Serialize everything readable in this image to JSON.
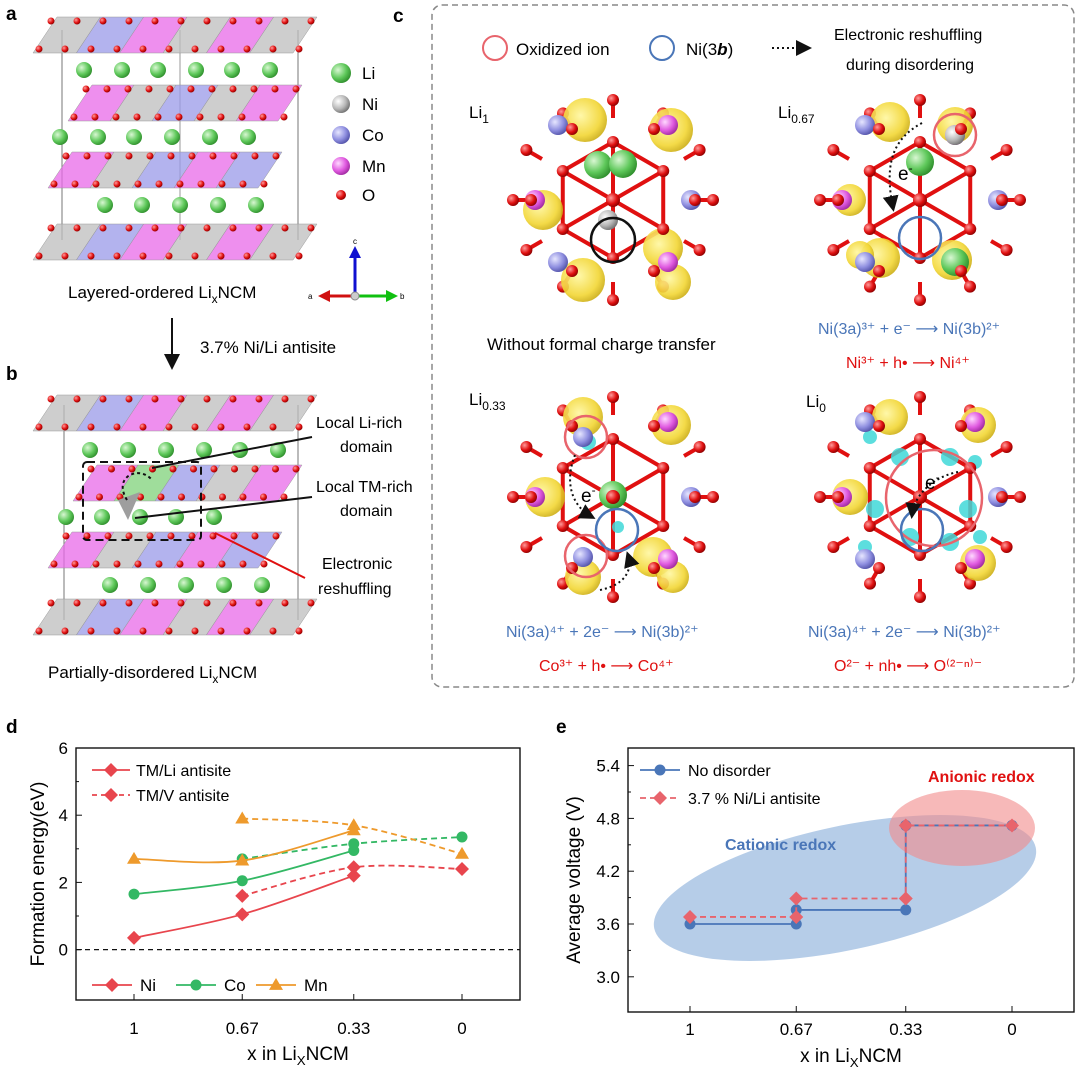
{
  "panels": {
    "a": {
      "letter": "a",
      "legend": [
        {
          "label": "Li",
          "color": "#5ec85a"
        },
        {
          "label": "Ni",
          "color": "#b8b8b8"
        },
        {
          "label": "Co",
          "color": "#8f8fe0"
        },
        {
          "label": "Mn",
          "color": "#e05ae0"
        },
        {
          "label": "O",
          "color": "#e01010"
        }
      ],
      "axes": {
        "c": "c",
        "a": "a",
        "b": "b"
      },
      "caption_prefix": "Layered-ordered Li",
      "caption_sub": "x",
      "caption_suffix": "NCM"
    },
    "arrow_label": "3.7% Ni/Li antisite",
    "b": {
      "letter": "b",
      "callout_li_1": "Local Li-rich",
      "callout_li_2": "domain",
      "callout_tm_1": "Local TM-rich",
      "callout_tm_2": "domain",
      "callout_e_1": "Electronic",
      "callout_e_2": "reshuffling",
      "caption_prefix": "Partially-disordered Li",
      "caption_sub": "x",
      "caption_suffix": "NCM"
    },
    "c": {
      "letter": "c",
      "legend_oxidized": "Oxidized ion",
      "legend_ni_prefix": "Ni(3",
      "legend_ni_bold": "b",
      "legend_ni_suffix": ")",
      "legend_reshuffle_1": "Electronic reshuffling",
      "legend_reshuffle_2": "during disordering",
      "electron": "e",
      "electron_sup": "-",
      "sub1": {
        "label": "Li",
        "sub": "1",
        "caption": "Without formal charge transfer"
      },
      "sub2": {
        "label": "Li",
        "sub": "0.67",
        "eq1": "Ni(3a)³⁺ + e⁻ ⟶ Ni(3b)²⁺",
        "eq2": "Ni³⁺ + h• ⟶ Ni⁴⁺"
      },
      "sub3": {
        "label": "Li",
        "sub": "0.33",
        "eq1": "Ni(3a)⁴⁺ + 2e⁻ ⟶ Ni(3b)²⁺",
        "eq2": "Co³⁺ + h• ⟶ Co⁴⁺"
      },
      "sub4": {
        "label": "Li",
        "sub": "0",
        "eq1": "Ni(3a)⁴⁺ + 2e⁻ ⟶ Ni(3b)²⁺",
        "eq2": "O²⁻ + nh• ⟶ O⁽²⁻ⁿ⁾⁻"
      }
    },
    "d": {
      "letter": "d"
    },
    "e": {
      "letter": "e"
    }
  },
  "colors": {
    "ni": "#e8454d",
    "co": "#33b864",
    "mn": "#ee9a2c",
    "blue": "#4a76b8",
    "red": "#e01010"
  },
  "chart_data": [
    {
      "type": "line",
      "panel": "d",
      "xlabel": "x in LixNCM",
      "ylabel": "Formation energy(eV)",
      "categories": [
        "1",
        "0.67",
        "0.33",
        "0"
      ],
      "ylim": [
        -1.5,
        6
      ],
      "yticks": [
        "0",
        "2",
        "4",
        "6"
      ],
      "legend_top": [
        "TM/Li antisite",
        "TM/V antisite"
      ],
      "legend_bottom": [
        "Ni",
        "Co",
        "Mn"
      ],
      "series": [
        {
          "name": "Ni",
          "style": "TM/Li antisite",
          "x": [
            1,
            0.67,
            0.33
          ],
          "values": [
            0.35,
            1.05,
            2.2
          ]
        },
        {
          "name": "Ni",
          "style": "TM/V antisite",
          "x": [
            0.67,
            0.33,
            0
          ],
          "values": [
            1.6,
            2.45,
            2.4
          ]
        },
        {
          "name": "Co",
          "style": "TM/Li antisite",
          "x": [
            1,
            0.67,
            0.33
          ],
          "values": [
            1.65,
            2.05,
            2.95
          ]
        },
        {
          "name": "Co",
          "style": "TM/V antisite",
          "x": [
            0.67,
            0.33,
            0
          ],
          "values": [
            2.7,
            3.15,
            3.35
          ]
        },
        {
          "name": "Mn",
          "style": "TM/Li antisite",
          "x": [
            1,
            0.67,
            0.33
          ],
          "values": [
            2.7,
            2.65,
            3.55
          ]
        },
        {
          "name": "Mn",
          "style": "TM/V antisite",
          "x": [
            0.67,
            0.33,
            0
          ],
          "values": [
            3.9,
            3.7,
            2.85
          ]
        }
      ]
    },
    {
      "type": "line",
      "panel": "e",
      "xlabel": "x in LixNCM",
      "ylabel": "Average voltage (V)",
      "categories": [
        "1",
        "0.67",
        "0.33",
        "0"
      ],
      "ylim": [
        2.6,
        5.6
      ],
      "yticks": [
        "3.0",
        "3.6",
        "4.2",
        "4.8",
        "5.4"
      ],
      "legend": [
        "No disorder",
        "3.7 % Ni/Li antisite"
      ],
      "annotations": [
        "Cationic redox",
        "Anionic redox"
      ],
      "series": [
        {
          "name": "No disorder",
          "x": [
            1,
            0.67,
            0.33,
            0
          ],
          "values": [
            3.6,
            3.76,
            3.76,
            4.72
          ]
        },
        {
          "name": "3.7 % Ni/Li antisite",
          "x": [
            1,
            0.67,
            0.33,
            0
          ],
          "values": [
            3.68,
            3.89,
            3.89,
            4.72
          ]
        }
      ]
    }
  ]
}
